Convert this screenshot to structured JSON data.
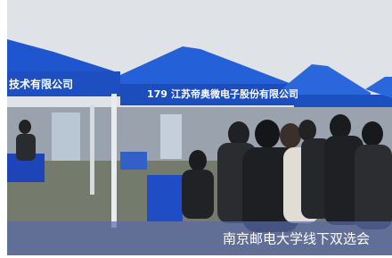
{
  "photo": {
    "banners": [
      "技术有限公司",
      "179",
      "江苏帝奥微电子股份有限公司"
    ],
    "caption": "南京邮电大学线下双选会"
  }
}
